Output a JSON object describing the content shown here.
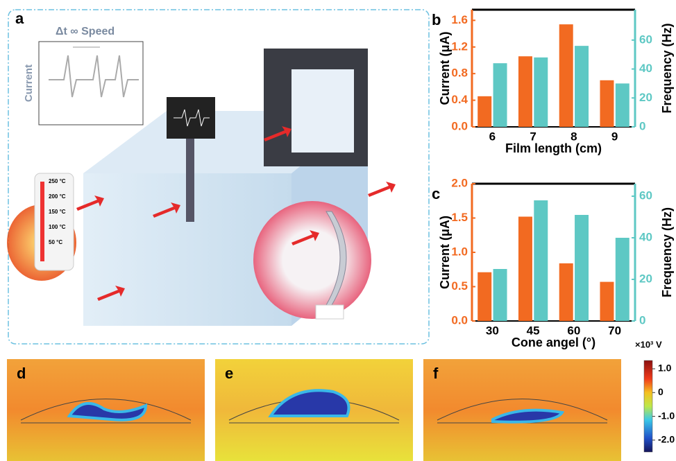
{
  "panel_a": {
    "label": "a",
    "formula": "Δt ∞ Speed",
    "axis_label": "Current",
    "thermometer": [
      "250 °C",
      "200 °C",
      "150 °C",
      "100 °C",
      "50 °C"
    ]
  },
  "chart_data": [
    {
      "type": "bar",
      "panel_label": "b",
      "x_label": "Film length (cm)",
      "y_label": "Current (μA)",
      "y2_label": "Frequency (Hz)",
      "categories": [
        "6",
        "7",
        "8",
        "9"
      ],
      "series": [
        {
          "color": "#f26a21",
          "values": [
            0.46,
            1.06,
            1.54,
            0.7
          ]
        },
        {
          "color": "#5ec8c4",
          "axis": "y2",
          "values": [
            44,
            48,
            56,
            30
          ]
        }
      ],
      "ylim": [
        0,
        1.76
      ],
      "yticks": [
        {
          "value": 0,
          "label": "0.0"
        },
        0.4,
        0.8,
        1.2,
        1.6
      ],
      "y2lim": [
        0,
        81
      ],
      "y2ticks": [
        0,
        20,
        40,
        60
      ]
    },
    {
      "type": "bar",
      "panel_label": "c",
      "x_label": "Cone angel (°)",
      "y_label": "Current (μA)",
      "y2_label": "Frequency (Hz)",
      "categories": [
        "30",
        "45",
        "60",
        "70"
      ],
      "series": [
        {
          "color": "#f26a21",
          "values": [
            0.71,
            1.52,
            0.84,
            0.57
          ]
        },
        {
          "color": "#5ec8c4",
          "axis": "y2",
          "values": [
            25,
            58,
            51,
            40
          ]
        }
      ],
      "ylim": [
        0,
        2
      ],
      "yticks": [
        {
          "value": 0,
          "label": "0.0"
        },
        0.5,
        {
          "value": 1,
          "label": "1.0"
        },
        1.5,
        {
          "value": 2,
          "label": "2.0"
        }
      ],
      "y2lim": [
        0,
        66
      ],
      "y2ticks": [
        0,
        20,
        40,
        60
      ]
    }
  ],
  "field_panels": [
    "d",
    "e",
    "f"
  ],
  "colorbar": {
    "unit": "×10³ V",
    "lim": [
      -2.5,
      1.35
    ],
    "ticks": [
      {
        "value": 1,
        "label": "1.0"
      },
      0,
      {
        "value": -1,
        "label": "-1.0"
      },
      {
        "value": -2,
        "label": "-2.0"
      }
    ]
  }
}
